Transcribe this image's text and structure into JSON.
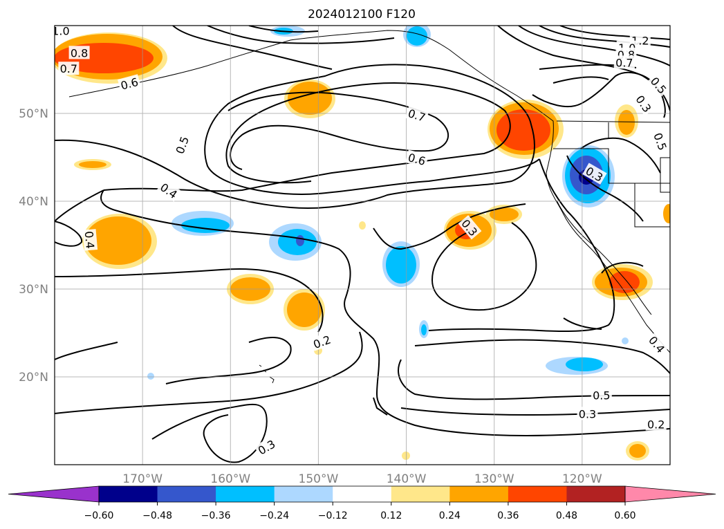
{
  "chart_data": {
    "type": "contour",
    "title": "2024012100 F120",
    "map": {
      "projection": "PlateCarree",
      "lon_range": [
        -180,
        -110
      ],
      "lat_range": [
        10,
        60
      ],
      "grid": true
    },
    "x_ticks": [
      {
        "value": -170,
        "label": "170°W"
      },
      {
        "value": -160,
        "label": "160°W"
      },
      {
        "value": -150,
        "label": "150°W"
      },
      {
        "value": -140,
        "label": "140°W"
      },
      {
        "value": -130,
        "label": "130°W"
      },
      {
        "value": -120,
        "label": "120°W"
      }
    ],
    "y_ticks": [
      {
        "value": 20,
        "label": "20°N"
      },
      {
        "value": 30,
        "label": "30°N"
      },
      {
        "value": 40,
        "label": "40°N"
      },
      {
        "value": 50,
        "label": "50°N"
      }
    ],
    "contour_labels": [
      {
        "text": "1.0",
        "lon": -179.3,
        "lat": 59.4,
        "rot": 0
      },
      {
        "text": "0.8",
        "lon": -177.2,
        "lat": 56.9,
        "rot": 0
      },
      {
        "text": "0.7",
        "lon": -178.4,
        "lat": 55.1,
        "rot": 0
      },
      {
        "text": "0.6",
        "lon": -171.5,
        "lat": 53.4,
        "rot": -15
      },
      {
        "text": "0.7",
        "lon": -138.8,
        "lat": 49.8,
        "rot": 18
      },
      {
        "text": "0.6",
        "lon": -138.8,
        "lat": 44.8,
        "rot": 15
      },
      {
        "text": "0.5",
        "lon": -165.5,
        "lat": 46.4,
        "rot": -70
      },
      {
        "text": "0.4",
        "lon": -167.0,
        "lat": 41.2,
        "rot": 35
      },
      {
        "text": "0.4",
        "lon": -176.0,
        "lat": 35.6,
        "rot": 85
      },
      {
        "text": "0.3",
        "lon": -132.8,
        "lat": 37.0,
        "rot": 50
      },
      {
        "text": "0.2",
        "lon": -149.6,
        "lat": 24.0,
        "rot": -20
      },
      {
        "text": "0.3",
        "lon": -155.9,
        "lat": 12.0,
        "rot": -30
      },
      {
        "text": "0.5",
        "lon": -117.8,
        "lat": 17.9,
        "rot": 0
      },
      {
        "text": "0.3",
        "lon": -119.4,
        "lat": 15.8,
        "rot": 0
      },
      {
        "text": "0.2",
        "lon": -111.6,
        "lat": 14.6,
        "rot": 0
      },
      {
        "text": "1.2",
        "lon": -113.4,
        "lat": 58.3,
        "rot": 0
      },
      {
        "text": "1.0",
        "lon": -114.9,
        "lat": 57.5,
        "rot": 0
      },
      {
        "text": "0.8",
        "lon": -115.0,
        "lat": 56.7,
        "rot": 0
      },
      {
        "text": "0.7",
        "lon": -115.2,
        "lat": 55.8,
        "rot": 0
      },
      {
        "text": "0.5",
        "lon": -111.3,
        "lat": 53.2,
        "rot": 50
      },
      {
        "text": "0.3",
        "lon": -113.0,
        "lat": 51.1,
        "rot": 55
      },
      {
        "text": "0.3",
        "lon": -118.6,
        "lat": 43.1,
        "rot": 30
      },
      {
        "text": "0.5",
        "lon": -111.1,
        "lat": 46.8,
        "rot": 70
      },
      {
        "text": "0.4",
        "lon": -111.5,
        "lat": 23.7,
        "rot": 50
      }
    ],
    "colorbar": {
      "levels": [
        -0.6,
        -0.48,
        -0.36,
        -0.24,
        -0.12,
        0.12,
        0.24,
        0.36,
        0.48,
        0.6
      ],
      "tick_labels": [
        "−0.60",
        "−0.48",
        "−0.36",
        "−0.24",
        "−0.12",
        "0.12",
        "0.24",
        "0.36",
        "0.48",
        "0.60"
      ],
      "colors": [
        "#9932CC",
        "#00008B",
        "#3557CC",
        "#00BFFF",
        "#ADD8FF",
        "#FFFFFF",
        "#FFE78A",
        "#FFA500",
        "#FF4500",
        "#B22222",
        "#FF88AA"
      ],
      "extend": "both"
    }
  }
}
